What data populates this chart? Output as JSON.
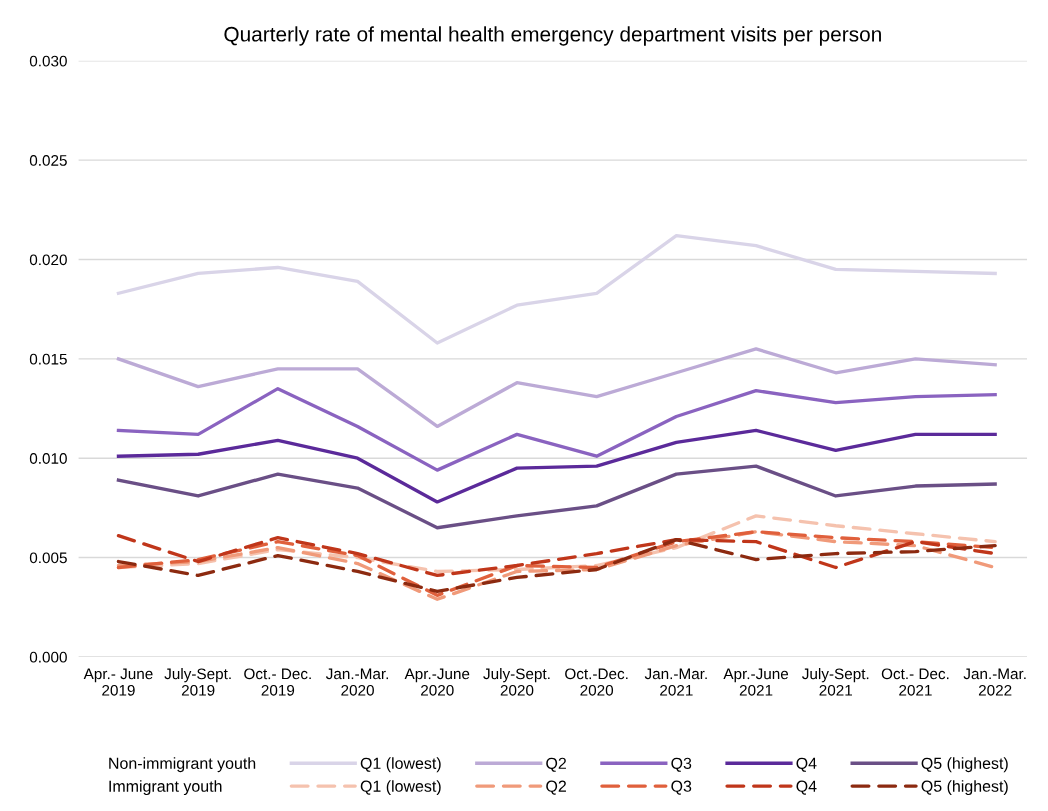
{
  "chart_data": {
    "type": "line",
    "title": "Quarterly rate of mental health emergency department visits per person",
    "categories": [
      "Apr.- June\n2019",
      "July-Sept.\n2019",
      "Oct.- Dec.\n2019",
      "Jan.-Mar.\n2020",
      "Apr.-June\n2020",
      "July-Sept.\n2020",
      "Oct.-Dec.\n2020",
      "Jan.-Mar.\n2021",
      "Apr.-June\n2021",
      "July-Sept.\n2021",
      "Oct.- Dec.\n2021",
      "Jan.-Mar.\n2022"
    ],
    "series": [
      {
        "name": "Q1 (lowest)",
        "color": "#d9d4e8",
        "line_style": "solid",
        "values": [
          0.0183,
          0.0193,
          0.0196,
          0.0189,
          0.0158,
          0.0177,
          0.0183,
          0.0212,
          0.0207,
          0.0195,
          0.0194,
          0.0193
        ]
      },
      {
        "name": "Q2",
        "color": "#bcaad6",
        "line_style": "solid",
        "values": [
          0.015,
          0.0136,
          0.0145,
          0.0145,
          0.0116,
          0.0138,
          0.0131,
          0.0143,
          0.0155,
          0.0143,
          0.015,
          0.0147
        ]
      },
      {
        "name": "Q3",
        "color": "#8a63c0",
        "line_style": "solid",
        "values": [
          0.0114,
          0.0112,
          0.0135,
          0.0116,
          0.0094,
          0.0112,
          0.0101,
          0.0121,
          0.0134,
          0.0128,
          0.0131,
          0.0132
        ]
      },
      {
        "name": "Q4",
        "color": "#5b2a9a",
        "line_style": "solid",
        "values": [
          0.0101,
          0.0102,
          0.0109,
          0.01,
          0.0078,
          0.0095,
          0.0096,
          0.0108,
          0.0114,
          0.0104,
          0.0112,
          0.0112
        ]
      },
      {
        "name": "Q5 (highest)",
        "color": "#6a4f86",
        "line_style": "solid",
        "values": [
          0.0089,
          0.0081,
          0.0092,
          0.0085,
          0.0065,
          0.0071,
          0.0076,
          0.0092,
          0.0096,
          0.0081,
          0.0086,
          0.0087
        ]
      },
      {
        "name": "Q1 (lowest)",
        "color": "#f5c2ae",
        "line_style": "dashed",
        "values": [
          0.0045,
          0.0047,
          0.0054,
          0.005,
          0.0043,
          0.0044,
          0.0046,
          0.0055,
          0.0071,
          0.0066,
          0.0062,
          0.0058
        ]
      },
      {
        "name": "Q2",
        "color": "#f09a7a",
        "line_style": "dashed",
        "values": [
          0.0046,
          0.0048,
          0.0055,
          0.0047,
          0.0029,
          0.0043,
          0.0044,
          0.0056,
          0.0063,
          0.0058,
          0.0056,
          0.0045
        ]
      },
      {
        "name": "Q3",
        "color": "#e0603c",
        "line_style": "dashed",
        "values": [
          0.0045,
          0.0049,
          0.0058,
          0.0051,
          0.0031,
          0.0046,
          0.0045,
          0.0058,
          0.0063,
          0.006,
          0.0058,
          0.0055
        ]
      },
      {
        "name": "Q4",
        "color": "#c0361a",
        "line_style": "dashed",
        "values": [
          0.0061,
          0.0048,
          0.006,
          0.0052,
          0.0041,
          0.0046,
          0.0052,
          0.0059,
          0.0058,
          0.0045,
          0.0058,
          0.0052
        ]
      },
      {
        "name": "Q5 (highest)",
        "color": "#8c2a10",
        "line_style": "dashed",
        "values": [
          0.0048,
          0.0041,
          0.0051,
          0.0043,
          0.0033,
          0.004,
          0.0044,
          0.0059,
          0.0049,
          0.0052,
          0.0053,
          0.0056
        ]
      }
    ],
    "annotations": [
      "Non-immigrant youth",
      "Immigrant youth"
    ],
    "ylim": [
      0,
      0.03
    ],
    "yticks": [
      {
        "value": 0,
        "label": "0.000"
      },
      {
        "value": 0.005,
        "label": "0.005"
      },
      {
        "value": 0.01,
        "label": "0.010"
      },
      {
        "value": 0.015,
        "label": "0.015"
      },
      {
        "value": 0.02,
        "label": "0.020"
      },
      {
        "value": 0.025,
        "label": "0.025"
      },
      {
        "value": 0.03,
        "label": "0.030"
      }
    ],
    "grid": "y",
    "legend": "bottom",
    "marker": "none"
  }
}
